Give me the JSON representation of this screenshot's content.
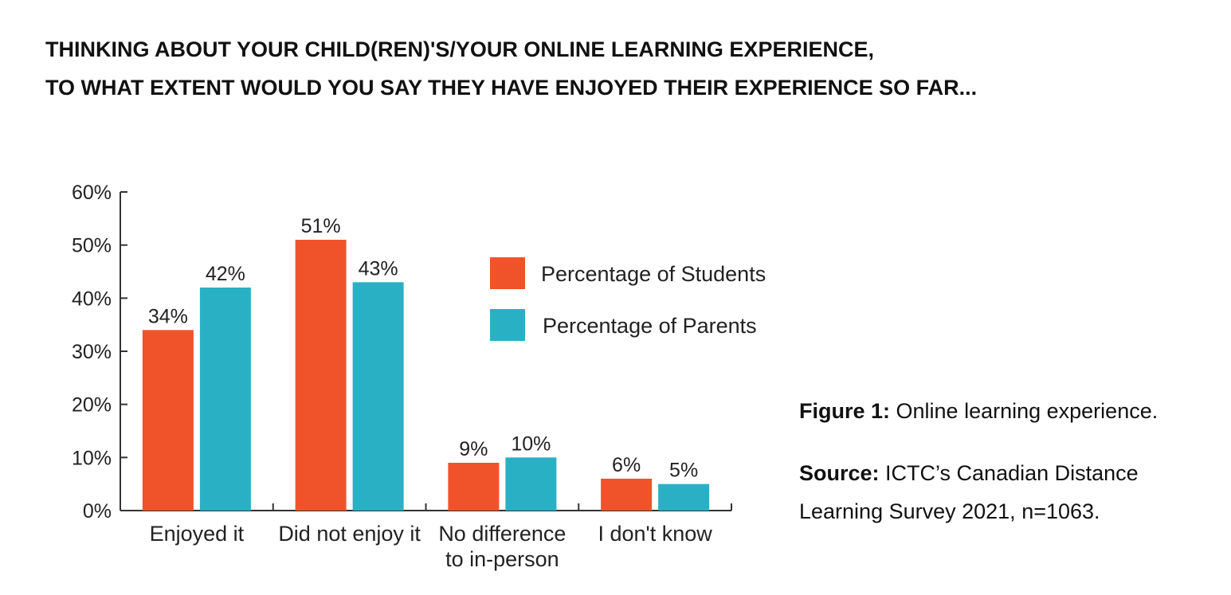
{
  "title_lines": [
    "THINKING ABOUT YOUR CHILD(REN)'S/YOUR ONLINE LEARNING EXPERIENCE,",
    "TO WHAT EXTENT WOULD YOU SAY THEY HAVE ENJOYED THEIR EXPERIENCE SO FAR..."
  ],
  "caption": {
    "figure_label": "Figure 1:",
    "figure_text": " Online learning experience.",
    "source_label": "Source:",
    "source_text_line1": " ICTC’s Canadian Distance",
    "source_text_line2": "Learning Survey 2021, n=1063."
  },
  "colors": {
    "students": "#f0532a",
    "parents": "#2ab0c5",
    "axis": "#333333"
  },
  "chart_data": {
    "type": "bar",
    "categories": [
      [
        "Enjoyed it"
      ],
      [
        "Did not enjoy it"
      ],
      [
        "No difference",
        "to in-person"
      ],
      [
        "I don't know"
      ]
    ],
    "series": [
      {
        "name": "Percentage of Students",
        "values": [
          34,
          51,
          9,
          6
        ],
        "labels": [
          "34%",
          "51%",
          "9%",
          "6%"
        ]
      },
      {
        "name": "Percentage of Parents",
        "values": [
          42,
          43,
          10,
          5
        ],
        "labels": [
          "42%",
          "43%",
          "10%",
          "5%"
        ]
      }
    ],
    "yticks": [
      0,
      10,
      20,
      30,
      40,
      50,
      60
    ],
    "ytick_labels": [
      "0%",
      "10%",
      "20%",
      "30%",
      "40%",
      "50%",
      "60%"
    ],
    "ylim": [
      0,
      60
    ],
    "legend_position": "right",
    "grid": false
  }
}
